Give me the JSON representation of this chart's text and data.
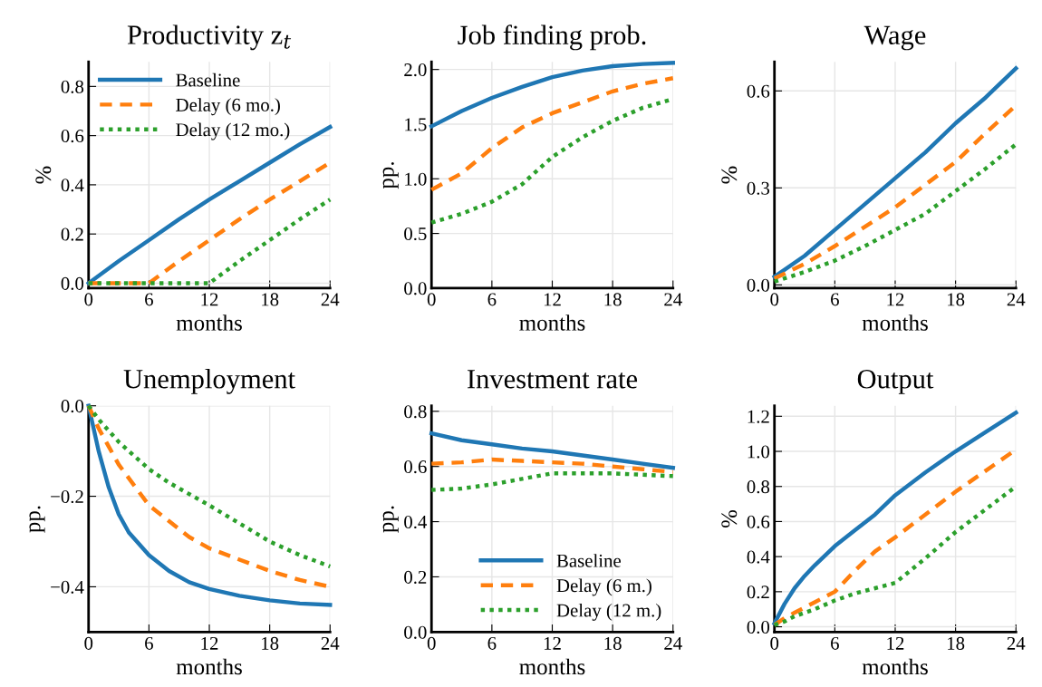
{
  "chart_data": [
    {
      "type": "line",
      "title": "Productivity z$_{t}$",
      "xlabel": "months",
      "ylabel": "%",
      "xlim": [
        0,
        24
      ],
      "xticks": [
        0,
        6,
        12,
        18,
        24
      ],
      "ylim": [
        -0.02,
        0.9
      ],
      "yticks": [
        {
          "value": 0,
          "label": "0.0"
        },
        0.2,
        0.4,
        0.6,
        0.8
      ],
      "grid": true,
      "legend": "top left",
      "x": [
        0,
        3,
        6,
        9,
        12,
        15,
        18,
        21,
        24
      ],
      "series": [
        {
          "name": "Baseline",
          "color": "#1f77b4",
          "line_style": "solid",
          "values": [
            0,
            0.09,
            0.175,
            0.26,
            0.34,
            0.415,
            0.49,
            0.565,
            0.635
          ]
        },
        {
          "name": "Delay (6 mo.)",
          "color": "#ff7f0e",
          "line_style": "dashed",
          "values": [
            0,
            0,
            0,
            0.09,
            0.175,
            0.26,
            0.34,
            0.415,
            0.49
          ]
        },
        {
          "name": "Delay (12 mo.)",
          "color": "#2ca02c",
          "line_style": "dotted",
          "values": [
            0,
            0,
            0,
            0,
            0,
            0.09,
            0.175,
            0.26,
            0.34
          ]
        }
      ]
    },
    {
      "type": "line",
      "title": "Job finding prob.",
      "xlabel": "months",
      "ylabel": "pp.",
      "xlim": [
        0,
        24
      ],
      "xticks": [
        0,
        6,
        12,
        18,
        24
      ],
      "ylim": [
        0,
        2.07
      ],
      "yticks": [
        {
          "value": 0,
          "label": "0.0"
        },
        0.5,
        {
          "value": 1,
          "label": "1.0"
        },
        1.5,
        {
          "value": 2,
          "label": "2.0"
        }
      ],
      "grid": true,
      "x": [
        0,
        3,
        6,
        9,
        12,
        15,
        18,
        21,
        24
      ],
      "series": [
        {
          "color": "#1f77b4",
          "line_style": "solid",
          "values": [
            1.48,
            1.62,
            1.74,
            1.84,
            1.93,
            1.99,
            2.03,
            2.05,
            2.06
          ]
        },
        {
          "color": "#ff7f0e",
          "line_style": "dashed",
          "values": [
            0.9,
            1.05,
            1.28,
            1.47,
            1.6,
            1.7,
            1.8,
            1.87,
            1.92
          ]
        },
        {
          "color": "#2ca02c",
          "line_style": "dotted",
          "values": [
            0.6,
            0.68,
            0.79,
            0.95,
            1.2,
            1.38,
            1.53,
            1.65,
            1.73
          ]
        }
      ]
    },
    {
      "type": "line",
      "title": "Wage",
      "xlabel": "months",
      "ylabel": "%",
      "xlim": [
        0,
        24
      ],
      "xticks": [
        0,
        6,
        12,
        18,
        24
      ],
      "ylim": [
        -0.01,
        0.69
      ],
      "yticks": [
        {
          "value": 0,
          "label": "0.0"
        },
        0.3,
        0.6
      ],
      "grid": true,
      "x": [
        0,
        3,
        6,
        9,
        12,
        15,
        18,
        21,
        24
      ],
      "series": [
        {
          "color": "#1f77b4",
          "line_style": "solid",
          "values": [
            0.025,
            0.09,
            0.17,
            0.25,
            0.33,
            0.41,
            0.5,
            0.58,
            0.67
          ]
        },
        {
          "color": "#ff7f0e",
          "line_style": "dashed",
          "values": [
            0.02,
            0.065,
            0.12,
            0.18,
            0.24,
            0.31,
            0.38,
            0.47,
            0.555
          ]
        },
        {
          "color": "#2ca02c",
          "line_style": "dotted",
          "values": [
            0.01,
            0.04,
            0.075,
            0.12,
            0.17,
            0.22,
            0.29,
            0.36,
            0.435
          ]
        }
      ]
    },
    {
      "type": "line",
      "title": "Unemployment",
      "xlabel": "months",
      "ylabel": "pp.",
      "xlim": [
        0,
        24
      ],
      "xticks": [
        0,
        6,
        12,
        18,
        24
      ],
      "ylim": [
        -0.5,
        0.0
      ],
      "yticks": [
        {
          "value": -0.4,
          "label": "−0.4"
        },
        {
          "value": -0.2,
          "label": "−0.2"
        },
        {
          "value": 0,
          "label": "0.0"
        }
      ],
      "grid": true,
      "x": [
        0,
        1,
        2,
        3,
        4,
        6,
        8,
        10,
        12,
        15,
        18,
        21,
        24
      ],
      "series": [
        {
          "color": "#1f77b4",
          "line_style": "solid",
          "values": [
            0,
            -0.1,
            -0.18,
            -0.24,
            -0.28,
            -0.33,
            -0.365,
            -0.39,
            -0.405,
            -0.42,
            -0.43,
            -0.437,
            -0.44
          ]
        },
        {
          "color": "#ff7f0e",
          "line_style": "dashed",
          "values": [
            0,
            -0.05,
            -0.09,
            -0.13,
            -0.16,
            -0.22,
            -0.255,
            -0.29,
            -0.315,
            -0.34,
            -0.365,
            -0.385,
            -0.4
          ]
        },
        {
          "color": "#2ca02c",
          "line_style": "dotted",
          "values": [
            0,
            -0.03,
            -0.055,
            -0.08,
            -0.1,
            -0.14,
            -0.17,
            -0.195,
            -0.22,
            -0.26,
            -0.3,
            -0.33,
            -0.355
          ]
        }
      ]
    },
    {
      "type": "line",
      "title": "Investment rate",
      "xlabel": "months",
      "ylabel": "pp.",
      "xlim": [
        0,
        24
      ],
      "xticks": [
        0,
        6,
        12,
        18,
        24
      ],
      "ylim": [
        0,
        0.82
      ],
      "yticks": [
        {
          "value": 0,
          "label": "0.0"
        },
        0.2,
        0.4,
        0.6,
        0.8
      ],
      "grid": true,
      "legend": "bottom right",
      "x": [
        0,
        3,
        6,
        9,
        12,
        15,
        18,
        21,
        24
      ],
      "series": [
        {
          "name": "Baseline",
          "color": "#1f77b4",
          "line_style": "solid",
          "values": [
            0.72,
            0.695,
            0.68,
            0.665,
            0.655,
            0.64,
            0.625,
            0.61,
            0.595
          ]
        },
        {
          "name": "Delay (6 m.)",
          "color": "#ff7f0e",
          "line_style": "dashed",
          "values": [
            0.61,
            0.615,
            0.625,
            0.62,
            0.615,
            0.61,
            0.6,
            0.59,
            0.58
          ]
        },
        {
          "name": "Delay (12 m.)",
          "color": "#2ca02c",
          "line_style": "dotted",
          "values": [
            0.515,
            0.52,
            0.535,
            0.555,
            0.575,
            0.575,
            0.575,
            0.57,
            0.565
          ]
        }
      ]
    },
    {
      "type": "line",
      "title": "Output",
      "xlabel": "months",
      "ylabel": "%",
      "xlim": [
        0,
        24
      ],
      "xticks": [
        0,
        6,
        12,
        18,
        24
      ],
      "ylim": [
        -0.03,
        1.26
      ],
      "yticks": [
        {
          "value": 0,
          "label": "0.0"
        },
        0.2,
        0.4,
        0.6,
        0.8,
        {
          "value": 1,
          "label": "1.0"
        },
        1.2
      ],
      "grid": true,
      "x": [
        0,
        1,
        2,
        3,
        4,
        6,
        8,
        10,
        12,
        15,
        18,
        21,
        24
      ],
      "series": [
        {
          "color": "#1f77b4",
          "line_style": "solid",
          "values": [
            0.02,
            0.13,
            0.22,
            0.29,
            0.35,
            0.46,
            0.55,
            0.64,
            0.75,
            0.88,
            1.0,
            1.11,
            1.22
          ]
        },
        {
          "color": "#ff7f0e",
          "line_style": "dashed",
          "values": [
            0.01,
            0.05,
            0.08,
            0.11,
            0.14,
            0.2,
            0.32,
            0.43,
            0.51,
            0.64,
            0.77,
            0.89,
            1.01
          ]
        },
        {
          "color": "#2ca02c",
          "line_style": "dotted",
          "values": [
            0.01,
            0.03,
            0.06,
            0.08,
            0.1,
            0.15,
            0.19,
            0.22,
            0.25,
            0.39,
            0.54,
            0.67,
            0.8
          ]
        }
      ]
    }
  ]
}
